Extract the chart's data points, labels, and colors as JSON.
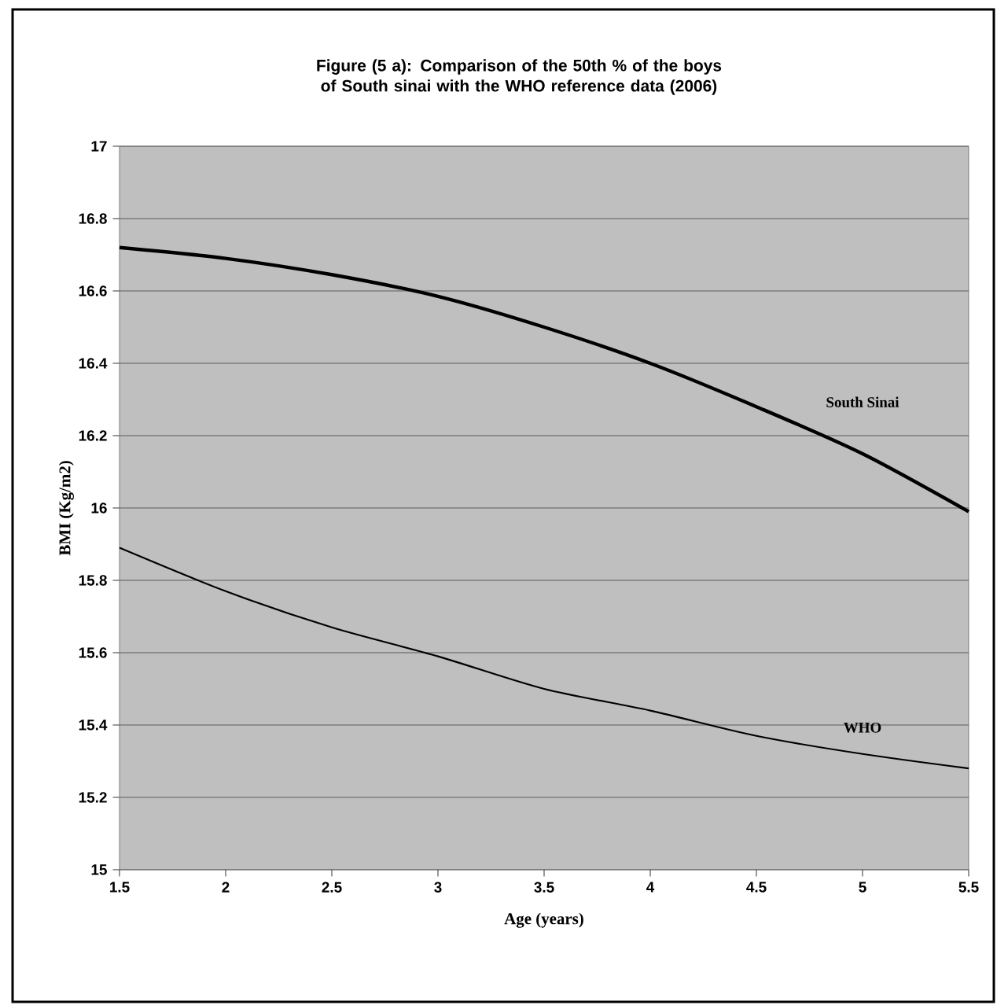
{
  "chart_data": {
    "type": "line",
    "title": "Figure (5 a): Comparison of the 50th % of the boys of South sinai with the WHO reference data (2006)",
    "xlabel": "Age (years)",
    "ylabel": "BMI (Kg/m2)",
    "xlim": [
      1.5,
      5.5
    ],
    "xticks": [
      1.5,
      2,
      2.5,
      3,
      3.5,
      4,
      4.5,
      5,
      5.5
    ],
    "ylim": [
      15,
      17
    ],
    "yticks": [
      15,
      15.2,
      15.4,
      15.6,
      15.8,
      16,
      16.2,
      16.4,
      16.6,
      16.8,
      17
    ],
    "grid": "y",
    "marker": "none",
    "line_style": "solid",
    "x": [
      1.5,
      2,
      2.5,
      3,
      3.5,
      4,
      4.5,
      5,
      5.5
    ],
    "series": [
      {
        "name": "South Sinai",
        "color": "#000000",
        "values": [
          16.72,
          16.69,
          16.645,
          16.585,
          16.5,
          16.4,
          16.28,
          16.15,
          15.99
        ]
      },
      {
        "name": "WHO",
        "color": "#000000",
        "values": [
          15.89,
          15.77,
          15.67,
          15.59,
          15.5,
          15.44,
          15.37,
          15.32,
          15.28
        ]
      }
    ]
  }
}
